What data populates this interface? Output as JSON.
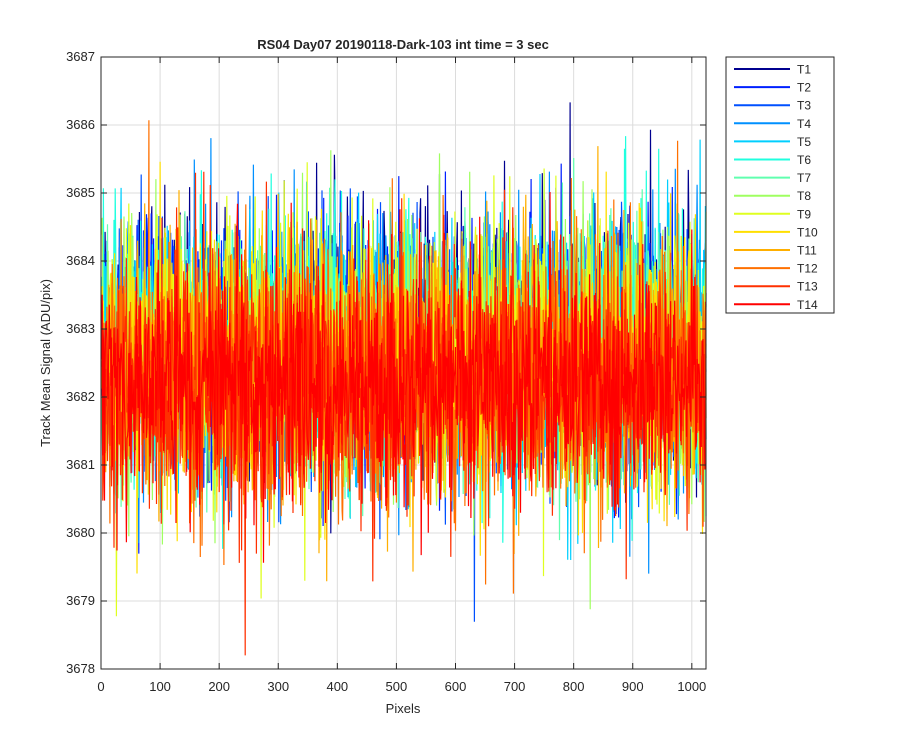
{
  "chart_data": {
    "type": "line",
    "title": "RS04 Day07 20190118-Dark-103 int time = 3 sec",
    "xlabel": "Pixels",
    "ylabel": "Track Mean Signal (ADU/pix)",
    "xlim": [
      0,
      1024
    ],
    "ylim": [
      3678,
      3687
    ],
    "xticks": [
      0,
      100,
      200,
      300,
      400,
      500,
      600,
      700,
      800,
      900,
      1000
    ],
    "yticks": [
      3678,
      3679,
      3680,
      3681,
      3682,
      3683,
      3684,
      3685,
      3686,
      3687
    ],
    "grid": true,
    "legend_location": "outside-right",
    "points_per_series": 1024,
    "noise_model": "approximate per-pixel dark signal around each series mean",
    "series": [
      {
        "name": "T1",
        "color": "#00008F",
        "mean": 3682.9,
        "sd": 0.95
      },
      {
        "name": "T2",
        "color": "#0020FF",
        "mean": 3682.8,
        "sd": 0.95
      },
      {
        "name": "T3",
        "color": "#0050FF",
        "mean": 3682.7,
        "sd": 0.95
      },
      {
        "name": "T4",
        "color": "#0090FF",
        "mean": 3682.6,
        "sd": 0.95
      },
      {
        "name": "T5",
        "color": "#00CFFF",
        "mean": 3682.6,
        "sd": 0.95
      },
      {
        "name": "T6",
        "color": "#20FFDF",
        "mean": 3682.7,
        "sd": 0.95
      },
      {
        "name": "T7",
        "color": "#60FFAF",
        "mean": 3682.6,
        "sd": 0.95
      },
      {
        "name": "T8",
        "color": "#9FFF60",
        "mean": 3682.6,
        "sd": 0.95
      },
      {
        "name": "T9",
        "color": "#DFFF20",
        "mean": 3682.6,
        "sd": 0.95
      },
      {
        "name": "T10",
        "color": "#FFDF00",
        "mean": 3682.5,
        "sd": 0.95
      },
      {
        "name": "T11",
        "color": "#FFAF00",
        "mean": 3682.4,
        "sd": 0.95
      },
      {
        "name": "T12",
        "color": "#FF7000",
        "mean": 3682.3,
        "sd": 0.95
      },
      {
        "name": "T13",
        "color": "#FF3000",
        "mean": 3682.2,
        "sd": 0.95
      },
      {
        "name": "T14",
        "color": "#FF0000",
        "mean": 3682.2,
        "sd": 0.85
      }
    ]
  }
}
